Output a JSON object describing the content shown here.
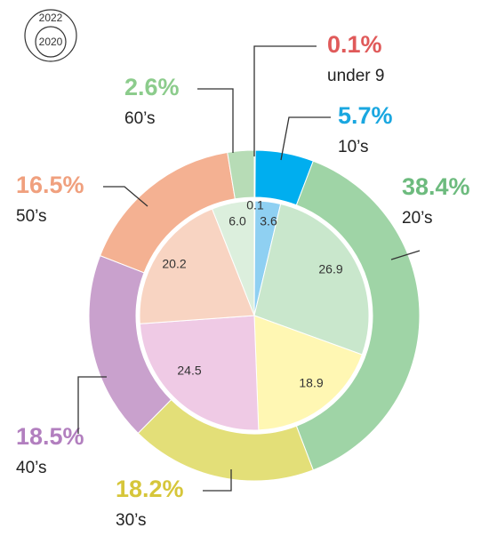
{
  "chart_data": {
    "type": "nested-donut",
    "categories": [
      "under 9",
      "10’s",
      "20’s",
      "30’s",
      "40’s",
      "50’s",
      "60’s"
    ],
    "label_colors": [
      "#e05a5a",
      "#1aa7e0",
      "#6dbb7e",
      "#d6c63a",
      "#b27fbf",
      "#f0a07e",
      "#8ccc8c"
    ],
    "series": [
      {
        "name": "2022",
        "ring": "outer",
        "values": [
          0.1,
          5.7,
          38.4,
          18.2,
          18.5,
          16.5,
          2.6
        ],
        "value_labels": [
          "0.1%",
          "5.7%",
          "38.4%",
          "18.2%",
          "18.5%",
          "16.5%",
          "2.6%"
        ],
        "colors": [
          "#e05a5a",
          "#00aeef",
          "#9fd4a6",
          "#e3df78",
          "#c9a1cd",
          "#f4b192",
          "#b7dcb6"
        ]
      },
      {
        "name": "2020",
        "ring": "inner",
        "values": [
          0.1,
          3.6,
          26.9,
          18.9,
          24.5,
          20.2,
          6.0
        ],
        "value_labels": [
          "0.1",
          "3.6",
          "26.9",
          "18.9",
          "24.5",
          "20.2",
          "6.0"
        ],
        "colors": [
          "#f0a0a0",
          "#8fd0f2",
          "#c9e7cc",
          "#fff7b3",
          "#efcae5",
          "#f8d4c2",
          "#dcefdd"
        ]
      }
    ]
  }
}
